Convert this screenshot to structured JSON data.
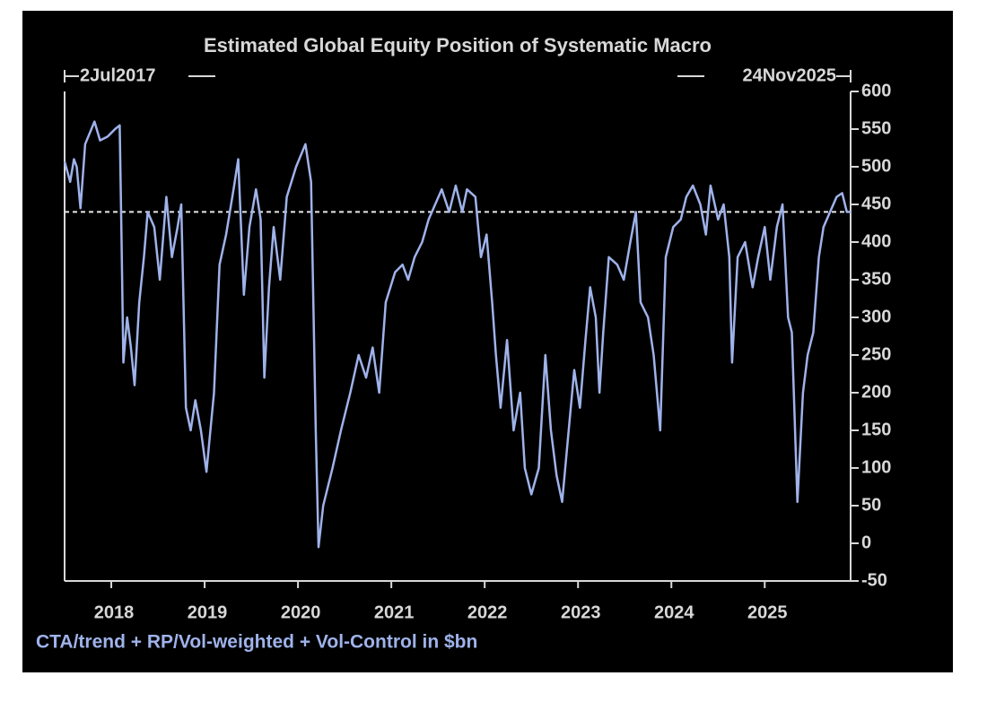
{
  "chart_data": {
    "type": "line",
    "title": "Estimated Global Equity Position of Systematic Macro",
    "start_label": "2Jul2017",
    "end_label": "24Nov2025",
    "footnote": "CTA/trend + RP/Vol-weighted + Vol-Control in $bn",
    "color": "#9fb2ea",
    "reference_line": 440,
    "xlim": [
      2017.5,
      2025.92
    ],
    "xticks": [
      2018,
      2019,
      2020,
      2021,
      2022,
      2023,
      2024,
      2025
    ],
    "ylim": [
      -50,
      600
    ],
    "yticks": [
      -50,
      0,
      50,
      100,
      150,
      200,
      250,
      300,
      350,
      400,
      450,
      500,
      550,
      600
    ],
    "grid": false,
    "x": [
      2017.5,
      2017.56,
      2017.6,
      2017.63,
      2017.67,
      2017.72,
      2017.82,
      2017.88,
      2017.96,
      2018.04,
      2018.09,
      2018.11,
      2018.13,
      2018.17,
      2018.21,
      2018.25,
      2018.3,
      2018.35,
      2018.39,
      2018.46,
      2018.52,
      2018.59,
      2018.65,
      2018.71,
      2018.75,
      2018.8,
      2018.85,
      2018.9,
      2018.96,
      2019.02,
      2019.1,
      2019.16,
      2019.23,
      2019.31,
      2019.36,
      2019.42,
      2019.48,
      2019.55,
      2019.6,
      2019.64,
      2019.69,
      2019.74,
      2019.81,
      2019.88,
      2019.98,
      2020.08,
      2020.14,
      2020.19,
      2020.22,
      2020.27,
      2020.37,
      2020.46,
      2020.56,
      2020.65,
      2020.73,
      2020.8,
      2020.87,
      2020.94,
      2021.04,
      2021.12,
      2021.18,
      2021.25,
      2021.33,
      2021.4,
      2021.47,
      2021.54,
      2021.62,
      2021.69,
      2021.76,
      2021.81,
      2021.9,
      2021.96,
      2022.02,
      2022.08,
      2022.12,
      2022.17,
      2022.24,
      2022.31,
      2022.38,
      2022.43,
      2022.5,
      2022.58,
      2022.65,
      2022.71,
      2022.77,
      2022.83,
      2022.9,
      2022.96,
      2023.02,
      2023.08,
      2023.13,
      2023.19,
      2023.23,
      2023.27,
      2023.33,
      2023.42,
      2023.49,
      2023.56,
      2023.62,
      2023.67,
      2023.75,
      2023.81,
      2023.88,
      2023.94,
      2024.02,
      2024.1,
      2024.16,
      2024.23,
      2024.31,
      2024.37,
      2024.42,
      2024.5,
      2024.56,
      2024.62,
      2024.65,
      2024.71,
      2024.79,
      2024.87,
      2024.93,
      2025.0,
      2025.06,
      2025.13,
      2025.19,
      2025.25,
      2025.29,
      2025.35,
      2025.41,
      2025.46,
      2025.52,
      2025.58,
      2025.63,
      2025.7,
      2025.77,
      2025.83,
      2025.88,
      2025.92
    ],
    "values": [
      507,
      480,
      510,
      500,
      445,
      530,
      560,
      535,
      540,
      550,
      555,
      400,
      240,
      300,
      260,
      210,
      320,
      380,
      440,
      420,
      350,
      460,
      380,
      420,
      450,
      180,
      150,
      190,
      150,
      95,
      200,
      370,
      410,
      470,
      510,
      330,
      420,
      470,
      430,
      220,
      340,
      420,
      350,
      460,
      500,
      530,
      480,
      150,
      -5,
      50,
      100,
      150,
      200,
      250,
      220,
      260,
      200,
      320,
      360,
      370,
      350,
      380,
      400,
      430,
      450,
      470,
      440,
      475,
      440,
      470,
      460,
      380,
      410,
      320,
      250,
      180,
      270,
      150,
      200,
      100,
      65,
      100,
      250,
      150,
      90,
      55,
      150,
      230,
      180,
      270,
      340,
      300,
      200,
      280,
      380,
      370,
      350,
      400,
      440,
      320,
      300,
      250,
      150,
      380,
      420,
      430,
      460,
      475,
      450,
      410,
      475,
      430,
      450,
      380,
      240,
      380,
      400,
      340,
      380,
      420,
      350,
      420,
      450,
      300,
      280,
      55,
      200,
      250,
      280,
      380,
      420,
      440,
      460,
      465,
      440,
      440
    ]
  }
}
